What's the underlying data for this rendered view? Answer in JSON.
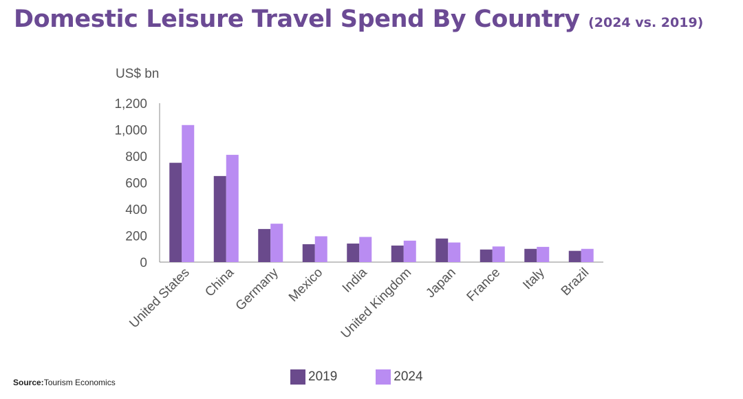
{
  "title": "Domestic Leisure Travel Spend By Country",
  "subtitle": "(2024 vs. 2019)",
  "source": {
    "label": "Source:",
    "text": "Tourism Economics"
  },
  "colors": {
    "title": "#6b4a94",
    "series_2019": "#6a4a8c",
    "series_2024": "#b98cf2",
    "axis": "#888888",
    "tick_text": "#555555"
  },
  "chart_data": {
    "type": "bar",
    "title": "Domestic Leisure Travel Spend By Country",
    "subtitle": "(2024 vs. 2019)",
    "ylabel": "US$ bn",
    "xlabel": "",
    "ylim": [
      0,
      1200
    ],
    "yticks": [
      "0",
      "200",
      "400",
      "600",
      "800",
      "1,000",
      "1,200"
    ],
    "ytick_values": [
      0,
      200,
      400,
      600,
      800,
      1000,
      1200
    ],
    "categories": [
      "United States",
      "China",
      "Germany",
      "Mexico",
      "India",
      "United Kingdom",
      "Japan",
      "France",
      "Italy",
      "Brazil"
    ],
    "series": [
      {
        "name": "2019",
        "values": [
          750,
          650,
          250,
          135,
          140,
          125,
          178,
          95,
          100,
          85
        ]
      },
      {
        "name": "2024",
        "values": [
          1035,
          810,
          290,
          195,
          190,
          162,
          148,
          118,
          115,
          100
        ]
      }
    ],
    "legend_position": "bottom",
    "grid": false
  }
}
